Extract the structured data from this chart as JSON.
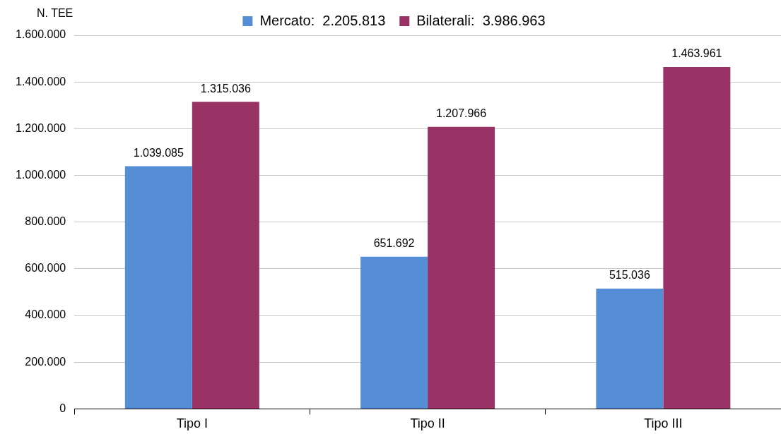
{
  "chart_data": {
    "type": "bar",
    "ylabel": "N. TEE",
    "categories": [
      "Tipo I",
      "Tipo II",
      "Tipo III"
    ],
    "series": [
      {
        "name": "Mercato:  2.205.813",
        "color": "#558ed5",
        "values": [
          1039085,
          651692,
          515036
        ],
        "value_labels": [
          "1.039.085",
          "651.692",
          "515.036"
        ]
      },
      {
        "name": "Bilaterali:  3.986.963",
        "color": "#993366",
        "values": [
          1315036,
          1207966,
          1463961
        ],
        "value_labels": [
          "1.315.036",
          "1.207.966",
          "1.463.961"
        ]
      }
    ],
    "ylim": [
      0,
      1600000
    ],
    "yticks": [
      0,
      {
        "value": 200000,
        "label": "200.000"
      },
      {
        "value": 400000,
        "label": "400.000"
      },
      {
        "value": 600000,
        "label": "600.000"
      },
      {
        "value": 800000,
        "label": "800.000"
      },
      {
        "value": 1000000,
        "label": "1.000.000"
      },
      {
        "value": 1200000,
        "label": "1.200.000"
      },
      {
        "value": 1400000,
        "label": "1.400.000"
      },
      {
        "value": 1600000,
        "label": "1.600.000"
      }
    ],
    "grid": "y",
    "legend": "top"
  }
}
